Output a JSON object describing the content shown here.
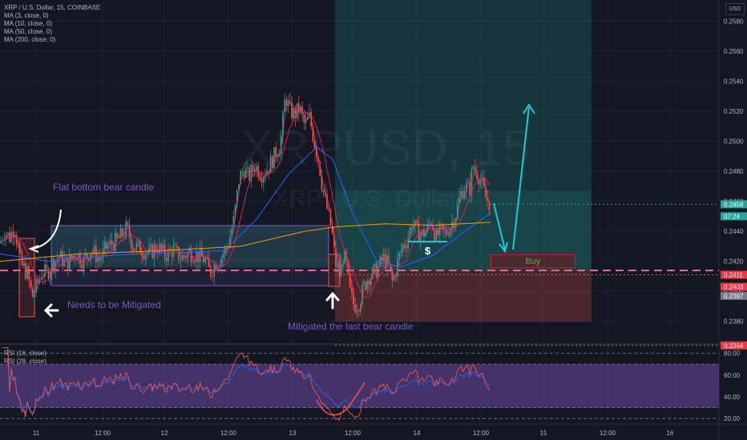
{
  "legend": {
    "symbol": "XRP / U.S. Dollar, 15, COINBASE",
    "ma3": "MA (3, close, 0)",
    "ma10": "MA (10, close, 0)",
    "ma50": "MA (50, close, 0)",
    "ma200": "MA (200, close, 0)"
  },
  "rsi_legend": {
    "rsi16": "RSI (16, close)",
    "rsi29": "RSI (29, close)"
  },
  "currency_button": "USD",
  "watermark": {
    "symbol": "XRPUSD, 15",
    "name": "XRP / U.S. Dollar"
  },
  "annotations": {
    "flat_bottom": "Flat bottom bear candle",
    "mitigated_needed": "Needs to be Mitigated",
    "mitigated_last": "Mitigated the last bear candle",
    "dollar": "$",
    "buy": "Buy"
  },
  "colors": {
    "background": "#131722",
    "up": "#26a69a",
    "down": "#ef5350",
    "ma3": "#f23645",
    "ma10": "#e91e63",
    "ma50": "#2962ff",
    "ma200": "#ff9800",
    "annotation": "#7e57c2",
    "arrow_cyan": "#26c6da"
  },
  "chart_data": [
    {
      "type": "candlestick",
      "title": "XRP / U.S. Dollar, 15, COINBASE",
      "x_tick_labels": [
        "11",
        "12:00",
        "12",
        "12:00",
        "13",
        "12:00",
        "14",
        "12:00",
        "15",
        "12:00",
        "16"
      ],
      "y_tick_labels": [
        "0.2580",
        "0.2560",
        "0.2540",
        "0.2520",
        "0.2500",
        "0.2480",
        "0.2460",
        "0.2440",
        "0.2420",
        "0.2400",
        "0.2380"
      ],
      "ylim": [
        0.2366,
        0.2594
      ],
      "price_labels": [
        {
          "text": "0.2458",
          "value": 0.2458,
          "color": "#26a69a"
        },
        {
          "text": "07:24",
          "value": 0.245,
          "color": "#26a69a"
        },
        {
          "text": "0.2411",
          "value": 0.2411,
          "color": "#f23645"
        },
        {
          "text": "0.2403",
          "value": 0.2403,
          "color": "#f23645"
        },
        {
          "text": "0.2397",
          "value": 0.2397,
          "color": "#787b86"
        },
        {
          "text": "0.2364",
          "value": 0.2364,
          "color": "#f23645"
        }
      ],
      "close_path": [
        [
          0,
          0.2432
        ],
        [
          5,
          0.244
        ],
        [
          12,
          0.2436
        ],
        [
          18,
          0.2444
        ],
        [
          26,
          0.2418
        ],
        [
          34,
          0.2412
        ],
        [
          40,
          0.2396
        ],
        [
          46,
          0.2404
        ],
        [
          52,
          0.2413
        ],
        [
          58,
          0.2412
        ],
        [
          66,
          0.242
        ],
        [
          74,
          0.2423
        ],
        [
          84,
          0.2418
        ],
        [
          94,
          0.2426
        ],
        [
          104,
          0.242
        ],
        [
          114,
          0.2428
        ],
        [
          124,
          0.2421
        ],
        [
          134,
          0.243
        ],
        [
          144,
          0.2433
        ],
        [
          150,
          0.2436
        ],
        [
          158,
          0.2442
        ],
        [
          166,
          0.243
        ],
        [
          176,
          0.2428
        ],
        [
          186,
          0.2425
        ],
        [
          196,
          0.243
        ],
        [
          206,
          0.2424
        ],
        [
          216,
          0.2428
        ],
        [
          226,
          0.2422
        ],
        [
          236,
          0.2426
        ],
        [
          246,
          0.2424
        ],
        [
          256,
          0.2421
        ],
        [
          262,
          0.2412
        ],
        [
          268,
          0.2418
        ],
        [
          276,
          0.2423
        ],
        [
          284,
          0.243
        ],
        [
          292,
          0.2448
        ],
        [
          298,
          0.2474
        ],
        [
          304,
          0.2482
        ],
        [
          310,
          0.2476
        ],
        [
          318,
          0.2484
        ],
        [
          326,
          0.2478
        ],
        [
          334,
          0.2482
        ],
        [
          342,
          0.249
        ],
        [
          350,
          0.2498
        ],
        [
          356,
          0.253
        ],
        [
          362,
          0.252
        ],
        [
          368,
          0.2518
        ],
        [
          374,
          0.2522
        ],
        [
          380,
          0.251
        ],
        [
          386,
          0.2516
        ],
        [
          392,
          0.25
        ],
        [
          398,
          0.2486
        ],
        [
          402,
          0.247
        ],
        [
          406,
          0.246
        ],
        [
          410,
          0.245
        ],
        [
          414,
          0.244
        ],
        [
          418,
          0.242
        ],
        [
          424,
          0.241
        ],
        [
          428,
          0.2424
        ],
        [
          432,
          0.2418
        ],
        [
          436,
          0.24
        ],
        [
          442,
          0.239
        ],
        [
          448,
          0.2393
        ],
        [
          454,
          0.2403
        ],
        [
          460,
          0.241
        ],
        [
          466,
          0.2412
        ],
        [
          472,
          0.2416
        ],
        [
          478,
          0.2422
        ],
        [
          484,
          0.2418
        ],
        [
          490,
          0.2405
        ],
        [
          496,
          0.242
        ],
        [
          502,
          0.243
        ],
        [
          508,
          0.2434
        ],
        [
          514,
          0.2446
        ],
        [
          520,
          0.244
        ],
        [
          526,
          0.2438
        ],
        [
          532,
          0.244
        ],
        [
          538,
          0.2448
        ],
        [
          544,
          0.2436
        ],
        [
          550,
          0.244
        ],
        [
          556,
          0.2438
        ],
        [
          562,
          0.2444
        ],
        [
          568,
          0.245
        ],
        [
          574,
          0.2464
        ],
        [
          580,
          0.247
        ],
        [
          586,
          0.2468
        ],
        [
          590,
          0.2484
        ],
        [
          594,
          0.248
        ],
        [
          598,
          0.2476
        ],
        [
          602,
          0.247
        ],
        [
          606,
          0.2462
        ],
        [
          612,
          0.2458
        ]
      ],
      "ma_lines": [
        {
          "name": "MA (50, close, 0)",
          "color": "#2962ff",
          "points": [
            [
              0,
              0.2425
            ],
            [
              60,
              0.242
            ],
            [
              140,
              0.2424
            ],
            [
              220,
              0.2426
            ],
            [
              280,
              0.2427
            ],
            [
              320,
              0.2448
            ],
            [
              360,
              0.2478
            ],
            [
              395,
              0.2496
            ],
            [
              415,
              0.2488
            ],
            [
              440,
              0.2452
            ],
            [
              470,
              0.242
            ],
            [
              500,
              0.2416
            ],
            [
              540,
              0.2424
            ],
            [
              580,
              0.244
            ],
            [
              612,
              0.2452
            ]
          ]
        },
        {
          "name": "MA (200, close, 0)",
          "color": "#ff9800",
          "points": [
            [
              0,
              0.242
            ],
            [
              100,
              0.2425
            ],
            [
              200,
              0.2427
            ],
            [
              300,
              0.243
            ],
            [
              380,
              0.244
            ],
            [
              420,
              0.2443
            ],
            [
              480,
              0.2445
            ],
            [
              540,
              0.2444
            ],
            [
              612,
              0.2446
            ]
          ]
        }
      ]
    },
    {
      "type": "line",
      "title": "RSI (16, close)",
      "y_tick_labels": [
        "80.00",
        "60.00",
        "40.00",
        "20.00"
      ],
      "ylim": [
        15,
        87
      ],
      "bands": [
        30,
        70
      ],
      "series": [
        {
          "name": "RSI (16, close)",
          "color": "#ef5350"
        },
        {
          "name": "RSI (29, close)",
          "color": "#2962ff"
        }
      ]
    }
  ]
}
